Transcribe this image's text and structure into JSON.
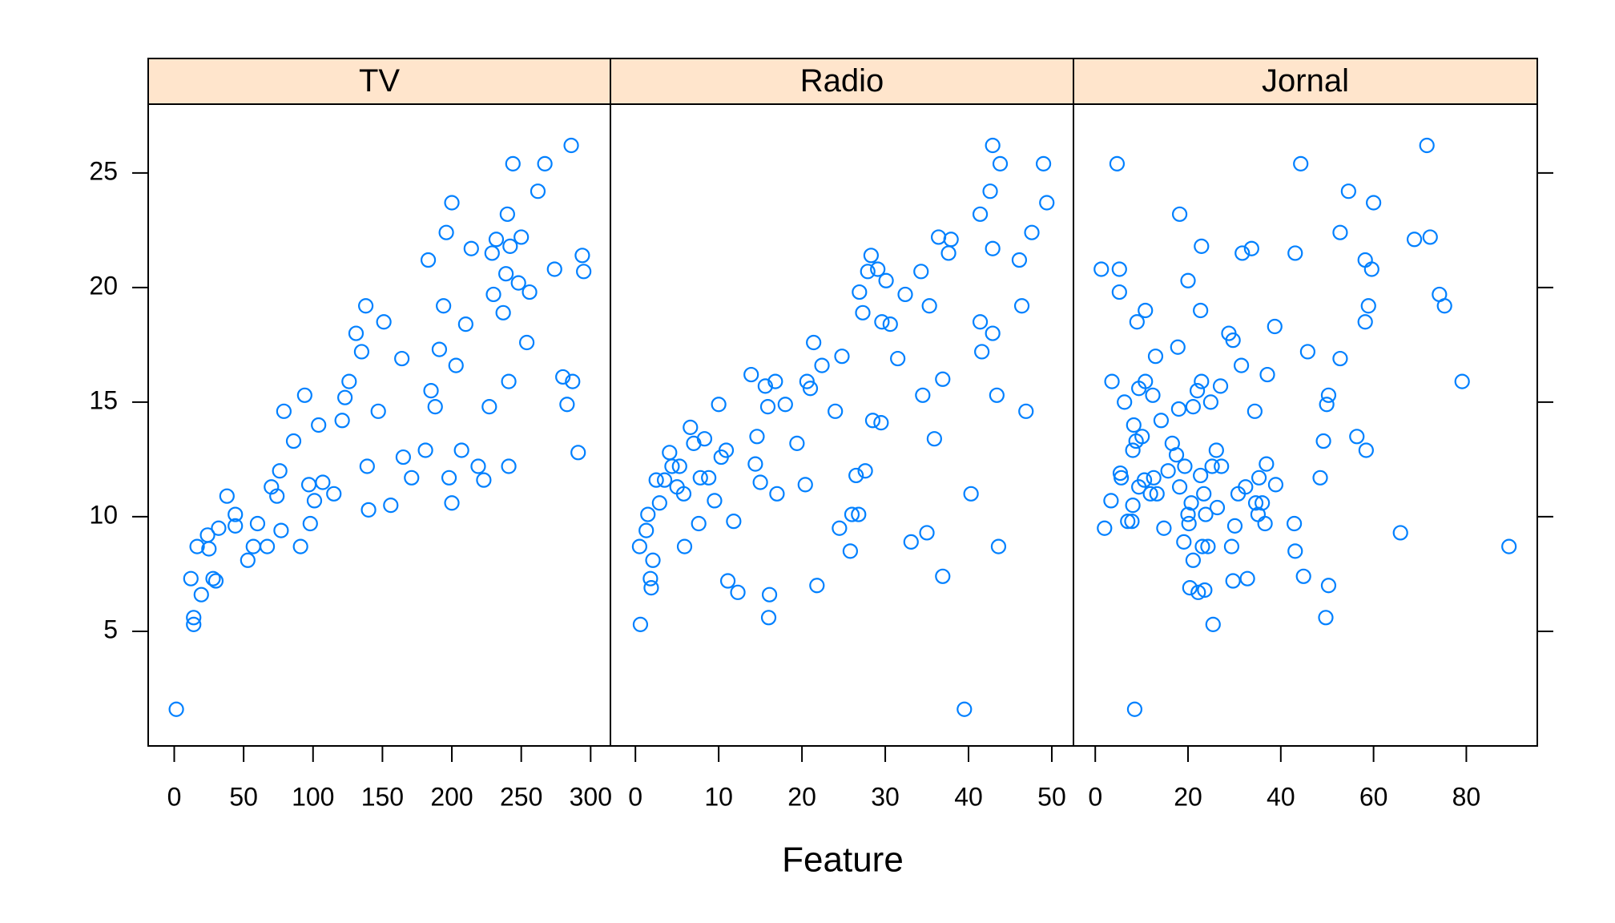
{
  "xlabel": "Feature",
  "chart_data": [
    {
      "type": "scatter",
      "title": "TV",
      "color": "#0080ff",
      "strip_color": "#ffe5cc",
      "xlim": [
        -18.75,
        314.25
      ],
      "xticks": [
        0,
        50,
        100,
        150,
        200,
        250,
        300
      ],
      "ylim": [
        0,
        28
      ],
      "yticks": [
        5,
        10,
        15,
        20,
        25
      ],
      "x": [
        1.5,
        14,
        14,
        12,
        16.5,
        19.5,
        24,
        25,
        28,
        30,
        32,
        38,
        44,
        44,
        53,
        57,
        60,
        67,
        70,
        74,
        76,
        77,
        79,
        86,
        91,
        94,
        97,
        98,
        101,
        104,
        107,
        115,
        121,
        123,
        126,
        131,
        135,
        138,
        139,
        140,
        147,
        151,
        156,
        164,
        165,
        171,
        181,
        183,
        185,
        188,
        191,
        194,
        196,
        198,
        200,
        200,
        203,
        207,
        210,
        214,
        219,
        223,
        227,
        229,
        230,
        232,
        237,
        239,
        240,
        241,
        241,
        242,
        244,
        248,
        250,
        254,
        256,
        262,
        267,
        274,
        280,
        283,
        286,
        287,
        291,
        294,
        295
      ],
      "y": [
        1.6,
        5.3,
        5.6,
        7.3,
        8.7,
        6.6,
        9.2,
        8.6,
        7.3,
        7.2,
        9.5,
        10.9,
        10.1,
        9.6,
        8.1,
        8.7,
        9.7,
        8.7,
        11.3,
        10.9,
        12,
        9.4,
        14.6,
        13.3,
        8.7,
        15.3,
        11.4,
        9.7,
        10.7,
        14,
        11.5,
        11,
        14.2,
        15.2,
        15.9,
        18,
        17.2,
        19.2,
        12.2,
        10.3,
        14.6,
        18.5,
        10.5,
        16.9,
        12.6,
        11.7,
        12.9,
        21.2,
        15.5,
        14.8,
        17.3,
        19.2,
        22.4,
        11.7,
        23.7,
        10.6,
        16.6,
        12.9,
        18.4,
        21.7,
        12.2,
        11.6,
        14.8,
        21.5,
        19.7,
        22.1,
        18.9,
        20.6,
        23.2,
        12.2,
        15.9,
        21.8,
        25.4,
        20.2,
        22.2,
        17.6,
        19.8,
        24.2,
        25.4,
        20.8,
        16.1,
        14.9,
        26.2,
        15.9,
        12.8,
        21.4,
        20.7
      ]
    },
    {
      "type": "scatter",
      "title": "Radio",
      "color": "#0080ff",
      "strip_color": "#ffe5cc",
      "xlim": [
        -3,
        52.6
      ],
      "xticks": [
        0,
        10,
        20,
        30,
        40,
        50
      ],
      "ylim": [
        0,
        28
      ],
      "yticks": [
        5,
        10,
        15,
        20,
        25
      ],
      "x": [
        0.6,
        0.5,
        1.3,
        1.8,
        1.9,
        2.1,
        1.5,
        2.5,
        2.9,
        3.5,
        4.1,
        4.4,
        5,
        5.3,
        5.8,
        5.9,
        6.6,
        7,
        7.6,
        7.8,
        8.3,
        8.8,
        9.5,
        10,
        10.3,
        10.9,
        11.1,
        11.8,
        12.3,
        13.9,
        14.4,
        14.6,
        15,
        15.6,
        15.9,
        16.1,
        16,
        16.8,
        17,
        18,
        19.4,
        20.4,
        20.6,
        21,
        21.4,
        21.8,
        22.4,
        24,
        24.5,
        24.8,
        25.8,
        26,
        26.5,
        26.8,
        26.9,
        27.3,
        27.6,
        27.9,
        28.3,
        28.5,
        29.1,
        29.5,
        29.6,
        30.1,
        30.6,
        31.5,
        32.4,
        33.1,
        34.3,
        34.5,
        35,
        35.3,
        35.9,
        36.4,
        36.9,
        36.9,
        37.6,
        37.9,
        39.5,
        40.3,
        41.4,
        41.4,
        41.6,
        42.6,
        42.9,
        42.9,
        42.9,
        43.4,
        43.6,
        43.8,
        46.1,
        46.4,
        46.9,
        47.6,
        49,
        49.4
      ],
      "y": [
        5.3,
        8.7,
        9.4,
        7.3,
        6.9,
        8.1,
        10.1,
        11.6,
        10.6,
        11.6,
        12.8,
        12.2,
        11.3,
        12.2,
        11,
        8.7,
        13.9,
        13.2,
        9.7,
        11.7,
        13.4,
        11.7,
        10.7,
        14.9,
        12.6,
        12.9,
        7.2,
        9.8,
        6.7,
        16.2,
        12.3,
        13.5,
        11.5,
        15.7,
        14.8,
        6.6,
        5.6,
        15.9,
        11,
        14.9,
        13.2,
        11.4,
        15.9,
        15.6,
        17.6,
        7,
        16.6,
        14.6,
        9.5,
        17,
        8.5,
        10.1,
        11.8,
        10.1,
        19.8,
        18.9,
        12,
        20.7,
        21.4,
        14.2,
        20.8,
        14.1,
        18.5,
        20.3,
        18.4,
        16.9,
        19.7,
        8.9,
        20.7,
        15.3,
        9.3,
        19.2,
        13.4,
        22.2,
        16,
        7.4,
        21.5,
        22.1,
        1.6,
        11,
        23.2,
        18.5,
        17.2,
        24.2,
        26.2,
        21.7,
        18,
        15.3,
        8.7,
        25.4,
        21.2,
        19.2,
        14.6,
        22.4,
        25.4,
        23.7
      ]
    },
    {
      "type": "scatter",
      "title": "Jornal",
      "color": "#0080ff",
      "strip_color": "#ffe5cc",
      "xlim": [
        -4.7,
        95.3
      ],
      "xticks": [
        0,
        20,
        40,
        60,
        80
      ],
      "ylim": [
        0,
        28
      ],
      "yticks": [
        5,
        10,
        15,
        20,
        25
      ],
      "x": [
        2,
        1.3,
        3.6,
        3.4,
        4.7,
        5.2,
        5.2,
        5.4,
        5.6,
        6.3,
        7,
        7.9,
        8.1,
        8.1,
        8.3,
        8.8,
        8.5,
        9,
        9.4,
        9.4,
        10.1,
        10.6,
        10.8,
        10.8,
        11.9,
        12.4,
        12.6,
        13,
        13.3,
        14.2,
        14.8,
        15.7,
        16.6,
        17.5,
        17.8,
        18.2,
        18,
        18.2,
        19.1,
        19.3,
        20,
        20,
        20.2,
        20.4,
        20.7,
        21.1,
        21.1,
        22,
        22.2,
        22.7,
        22.7,
        22.9,
        22.9,
        23.1,
        23.4,
        23.6,
        23.8,
        24.3,
        24.9,
        25.2,
        25.4,
        26.1,
        26.3,
        27,
        27.2,
        28.8,
        29.4,
        29.7,
        29.7,
        30.1,
        30.8,
        31.5,
        31.7,
        32.4,
        32.8,
        33.7,
        34.4,
        34.6,
        35.1,
        35.3,
        36,
        36.6,
        36.9,
        37.1,
        38.7,
        38.9,
        42.9,
        43.1,
        43.1,
        44.3,
        44.9,
        45.8,
        48.5,
        49.2,
        49.7,
        49.9,
        50.3,
        50.3,
        52.8,
        52.8,
        54.6,
        56.4,
        58.2,
        58.2,
        58.4,
        58.9,
        59.6,
        60,
        65.8,
        68.8,
        71.5,
        72.2,
        74.2,
        75.3,
        79.1,
        89.2
      ],
      "y": [
        9.5,
        20.8,
        15.9,
        10.7,
        25.4,
        20.8,
        19.8,
        11.9,
        11.7,
        15,
        9.8,
        9.8,
        10.5,
        12.9,
        14,
        13.3,
        1.6,
        18.5,
        15.6,
        11.3,
        13.5,
        11.6,
        19,
        15.9,
        11,
        15.3,
        11.7,
        17,
        11,
        14.2,
        9.5,
        12,
        13.2,
        12.7,
        17.4,
        23.2,
        14.7,
        11.3,
        8.9,
        12.2,
        20.3,
        10.1,
        9.7,
        6.9,
        10.6,
        14.8,
        8.1,
        15.5,
        6.7,
        19,
        11.8,
        21.8,
        15.9,
        8.7,
        11,
        6.8,
        10.1,
        8.7,
        15,
        12.2,
        5.3,
        12.9,
        10.4,
        15.7,
        12.2,
        18,
        8.7,
        17.7,
        7.2,
        9.6,
        11,
        16.6,
        21.5,
        11.3,
        7.3,
        21.7,
        14.6,
        10.6,
        10.1,
        11.7,
        10.6,
        9.7,
        12.3,
        16.2,
        18.3,
        11.4,
        9.7,
        8.5,
        21.5,
        25.4,
        7.4,
        17.2,
        11.7,
        13.3,
        5.6,
        14.9,
        15.3,
        7,
        16.9,
        22.4,
        24.2,
        13.5,
        21.2,
        18.5,
        12.9,
        19.2,
        20.8,
        23.7,
        9.3,
        22.1,
        26.2,
        22.2,
        19.7,
        19.2,
        15.9,
        8.7
      ]
    }
  ]
}
